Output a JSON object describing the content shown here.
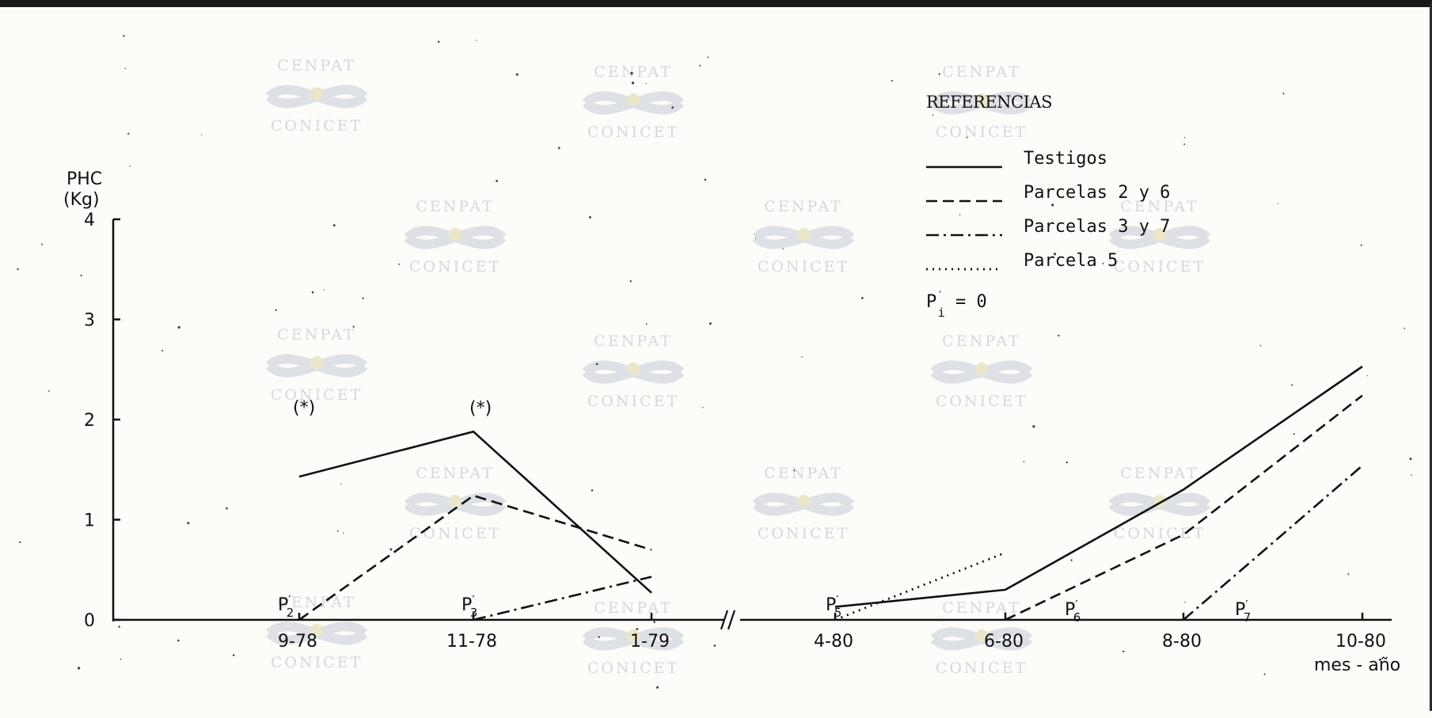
{
  "chart_data": {
    "type": "line",
    "title": "",
    "ylabel_line1": "PHC",
    "ylabel_line2": "(Kg)",
    "xlabel": "mes - año",
    "ylim": [
      0,
      4
    ],
    "yticks": [
      "0",
      "1",
      "2",
      "3",
      "4"
    ],
    "x": [
      "9-78",
      "11-78",
      "1-79",
      "4-80",
      "6-80",
      "8-80",
      "10-80"
    ],
    "axis_break_after_index": 2,
    "legend_title": "REFERENCIAS",
    "series": [
      {
        "name": "Testigos",
        "style": "solid",
        "values": [
          1.43,
          1.88,
          0.27,
          0.13,
          0.3,
          1.3,
          2.53
        ]
      },
      {
        "name": "Parcelas 2 y 6",
        "style": "dashed",
        "values": [
          0,
          1.24,
          0.7,
          null,
          0,
          0.85,
          2.24
        ]
      },
      {
        "name": "Parcelas 3 y 7",
        "style": "dashdot",
        "values": [
          null,
          0,
          0.43,
          null,
          null,
          0,
          1.54
        ]
      },
      {
        "name": "Parcela 5",
        "style": "dotted",
        "values": [
          null,
          null,
          null,
          0,
          0.67,
          null,
          null
        ]
      }
    ],
    "legend_note": "P'i = 0",
    "annotations": [
      {
        "text": "(*)",
        "x": "9-78",
        "y": 1.92
      },
      {
        "text": "(*)",
        "x": "11-78",
        "y": 1.98
      },
      {
        "text": "P'2",
        "x": "9-78",
        "y": 0
      },
      {
        "text": "P'3",
        "x": "11-78",
        "y": 0
      },
      {
        "text": "P'5",
        "x": "4-80",
        "y": 0
      },
      {
        "text": "P'6",
        "x": "6-80",
        "y": 0
      },
      {
        "text": "P'7",
        "x": "8-80",
        "y": 0
      }
    ],
    "grid": false,
    "legend_position": "top-right",
    "colors": {
      "line": "#111111",
      "watermark": "#d4d8dc",
      "background": "#fcfcf9"
    }
  },
  "watermark": {
    "top": "CENPAT",
    "bottom": "CONICET"
  }
}
